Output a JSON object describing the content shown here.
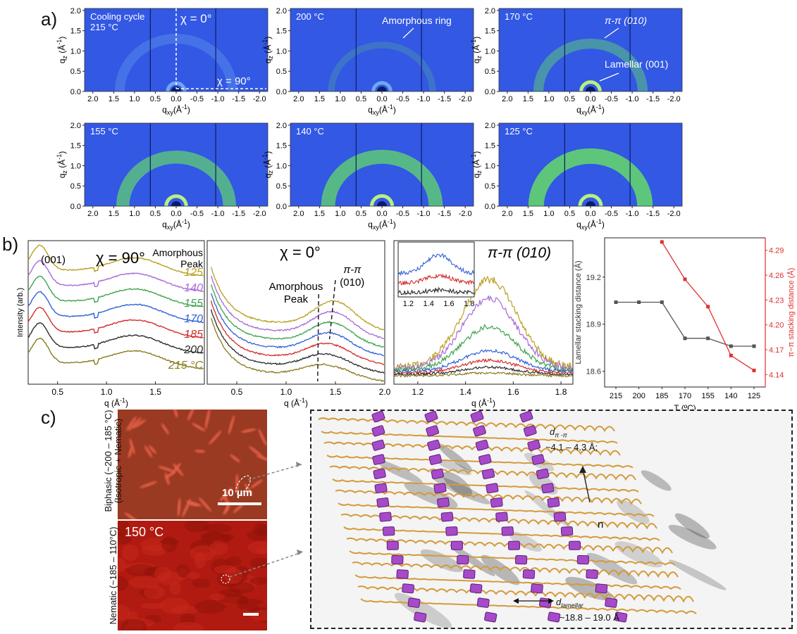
{
  "panel_labels": {
    "a": "a)",
    "b": "b)",
    "c": "c)"
  },
  "giwaxs": {
    "qxy_ticks": [
      "2.0",
      "1.5",
      "1.0",
      "0.5",
      "0.0",
      "-0.5",
      "-1.0",
      "-1.5",
      "-2.0"
    ],
    "qz_ticks": [
      "0.0",
      "0.5",
      "1.0",
      "1.5",
      "2.0"
    ],
    "xlabel": "qxy(Å-1)",
    "ylabel": "qz (Å-1)",
    "panels": [
      {
        "temp": "Cooling cycle\n215 °C",
        "chi0": "χ = 0°",
        "chi90": "χ = 90°",
        "ring": 0.0
      },
      {
        "temp": "200 °C",
        "annotation": "Amorphous ring",
        "ring": 0.1
      },
      {
        "temp": "170 °C",
        "annotation": "π-π (010)",
        "annotation2": "Lamellar (001)",
        "ring": 0.45
      },
      {
        "temp": "155 °C",
        "ring": 0.75
      },
      {
        "temp": "140 °C",
        "ring": 0.85
      },
      {
        "temp": "125 °C",
        "ring": 1.0
      }
    ]
  },
  "chart_data": [
    {
      "type": "line",
      "title": "χ = 90°",
      "xlabel": "q (Å-1)",
      "ylabel": "Intensity (arb.)",
      "xlim": [
        0.2,
        2.0
      ],
      "xticks": [
        "0.5",
        "1.0",
        "1.5"
      ],
      "peak_label": "(001)",
      "amorphous_label": "Amorphous\nPeak",
      "series": [
        {
          "name": "125",
          "color": "#b8a01e"
        },
        {
          "name": "140",
          "color": "#a86ad8"
        },
        {
          "name": "155",
          "color": "#3fa34d"
        },
        {
          "name": "170",
          "color": "#2f62d6"
        },
        {
          "name": "185",
          "color": "#d42b2b"
        },
        {
          "name": "200",
          "color": "#2b2b2b"
        },
        {
          "name": "215 °C",
          "color": "#8a7a1a"
        }
      ]
    },
    {
      "type": "line",
      "title": "χ = 0°",
      "xlabel": "q (Å-1)",
      "xlim": [
        0.2,
        2.0
      ],
      "xticks": [
        "0.5",
        "1.0",
        "1.5",
        "2.0"
      ],
      "annotations": [
        "Amorphous\nPeak",
        "π-π\n(010)"
      ]
    },
    {
      "type": "line",
      "title": "π-π (010)",
      "xlabel": "q (Å-1)",
      "xlim": [
        1.1,
        1.85
      ],
      "xticks": [
        "1.2",
        "1.4",
        "1.6",
        "1.8"
      ],
      "inset_xticks": [
        "1.2",
        "1.4",
        "1.6",
        "1.8"
      ]
    },
    {
      "type": "line",
      "xlabel": "T (ºC)",
      "ylabel": "Lamellar stacking distance (Å)",
      "y2label": "π−π stacking distance (Å)",
      "categories": [
        "215",
        "200",
        "185",
        "170",
        "155",
        "140",
        "125"
      ],
      "ylim": [
        18.5,
        19.45
      ],
      "yticks": [
        "18.6",
        "18.9",
        "19.2"
      ],
      "y2lim": [
        4.125,
        4.305
      ],
      "y2ticks": [
        "4.14",
        "4.17",
        "4.20",
        "4.23",
        "4.26",
        "4.29"
      ],
      "series": [
        {
          "name": "Lamellar",
          "color": "#555555",
          "values": [
            19.04,
            19.04,
            19.04,
            18.81,
            18.81,
            18.76,
            18.76
          ]
        },
        {
          "name": "π-π",
          "color": "#e03030",
          "axis": "right",
          "values": [
            null,
            null,
            4.3,
            4.255,
            4.222,
            4.163,
            4.145
          ]
        }
      ]
    }
  ],
  "micrographs": {
    "top_side": "Biphasic (~200 – 185 °C)\n(Isotropic + Nematic)",
    "scalebar": "10 µm",
    "bottom_temp": "150 °C",
    "bottom_side": "Nematic (~185 – 110°C)"
  },
  "schematic": {
    "d_pipi_label": "d",
    "d_pipi_sub": "π -π",
    "d_pipi_value": "~4.1 – 4.3 Å;",
    "n_label": "n",
    "d_lam_label": "d",
    "d_lam_sub": "lamellar",
    "d_lam_value": "~18.8 – 19.0 Å"
  }
}
